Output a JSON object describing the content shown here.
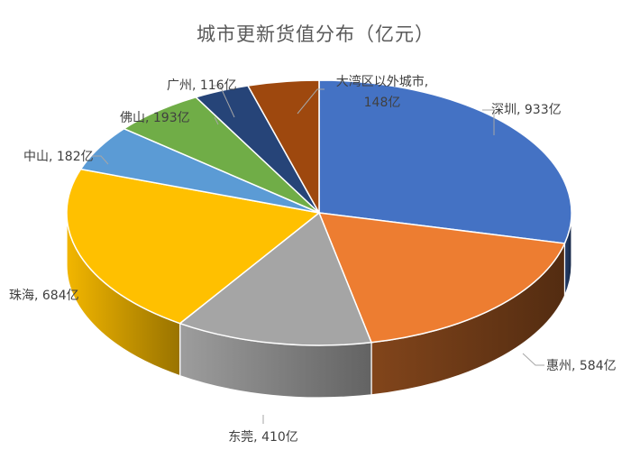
{
  "chart_data": {
    "type": "pie",
    "title": "城市更新货值分布（亿元）",
    "unit_suffix": "亿",
    "slices": [
      {
        "name": "深圳",
        "value": 933,
        "color": "#4472C4"
      },
      {
        "name": "惠州",
        "value": 584,
        "color": "#ED7D31"
      },
      {
        "name": "东莞",
        "value": 410,
        "color": "#A5A5A5"
      },
      {
        "name": "珠海",
        "value": 684,
        "color": "#FFC000"
      },
      {
        "name": "中山",
        "value": 182,
        "color": "#5B9BD5"
      },
      {
        "name": "佛山",
        "value": 193,
        "color": "#70AD47"
      },
      {
        "name": "广州",
        "value": 116,
        "color": "#264478"
      },
      {
        "name": "大湾区以外城市",
        "value": 148,
        "color": "#9E480E"
      }
    ],
    "labels": [
      {
        "line1": "深圳, 933亿"
      },
      {
        "line1": "惠州, 584亿"
      },
      {
        "line1": "东莞, 410亿"
      },
      {
        "line1": "珠海, 684亿"
      },
      {
        "line1": "中山, 182亿"
      },
      {
        "line1": "佛山, 193亿"
      },
      {
        "line1": "广州, 116亿"
      },
      {
        "line1": "大湾区以外城市,",
        "line2": "148亿"
      }
    ]
  }
}
